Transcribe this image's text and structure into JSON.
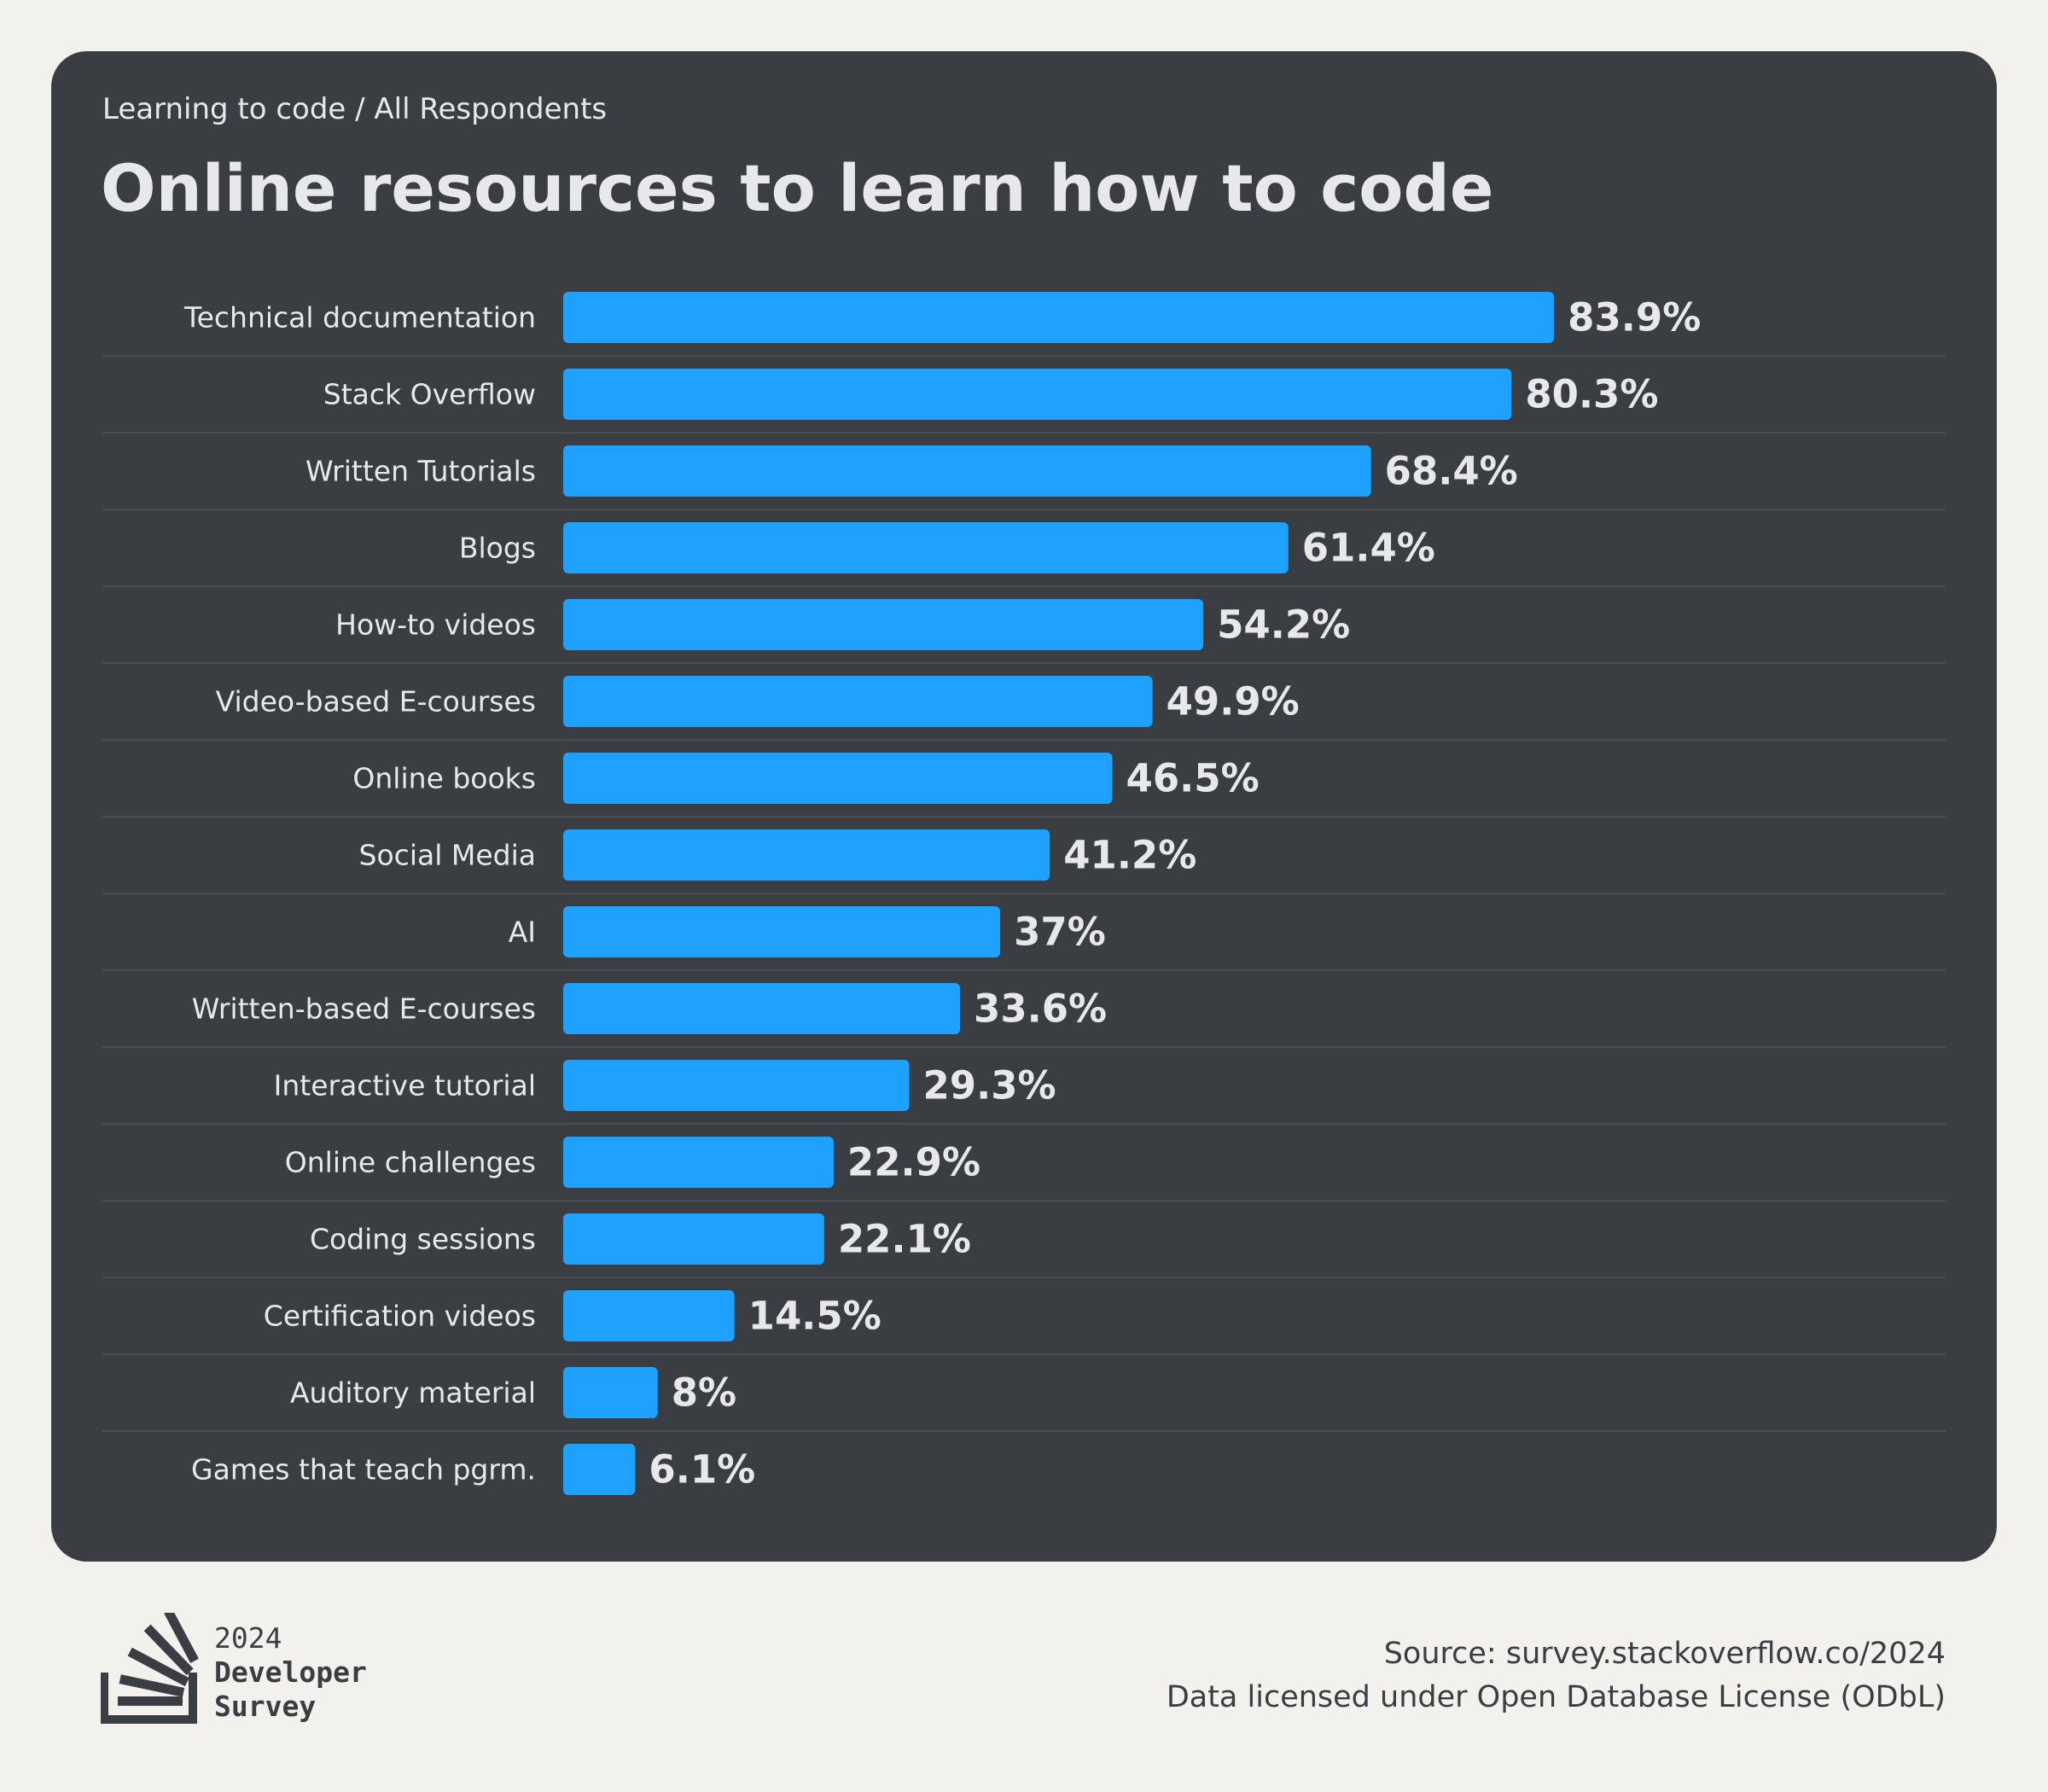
{
  "header": {
    "breadcrumb": "Learning to code / All Respondents",
    "title": "Online resources to learn how to code"
  },
  "chart_data": {
    "type": "bar",
    "orientation": "horizontal",
    "categories": [
      "Technical documentation",
      "Stack Overflow",
      "Written Tutorials",
      "Blogs",
      "How-to videos",
      "Video-based E-courses",
      "Online books",
      "Social Media",
      "AI",
      "Written-based E-courses",
      "Interactive tutorial",
      "Online challenges",
      "Coding sessions",
      "Certification videos",
      "Auditory material",
      "Games that teach pgrm."
    ],
    "values": [
      83.9,
      80.3,
      68.4,
      61.4,
      54.2,
      49.9,
      46.5,
      41.2,
      37,
      33.6,
      29.3,
      22.9,
      22.1,
      14.5,
      8,
      6.1
    ],
    "value_labels": [
      "83.9%",
      "80.3%",
      "68.4%",
      "61.4%",
      "54.2%",
      "49.9%",
      "46.5%",
      "41.2%",
      "37%",
      "33.6%",
      "29.3%",
      "22.9%",
      "22.1%",
      "14.5%",
      "8%",
      "6.1%"
    ],
    "value_suffix": "%",
    "xlim": [
      0,
      100
    ],
    "grid": false,
    "bar_color": "#1ea1ff"
  },
  "footer": {
    "logo_year": "2024",
    "logo_line1": "Developer",
    "logo_line2": "Survey",
    "source": "Source: survey.stackoverflow.co/2024",
    "license": "Data licensed under Open Database License (ODbL)"
  },
  "colors": {
    "page_background": "#f2f1ee",
    "card_background": "#3a3e43",
    "text_light": "#e8e8ea",
    "separator": "#4a4e54",
    "bar": "#1ea1ff"
  }
}
